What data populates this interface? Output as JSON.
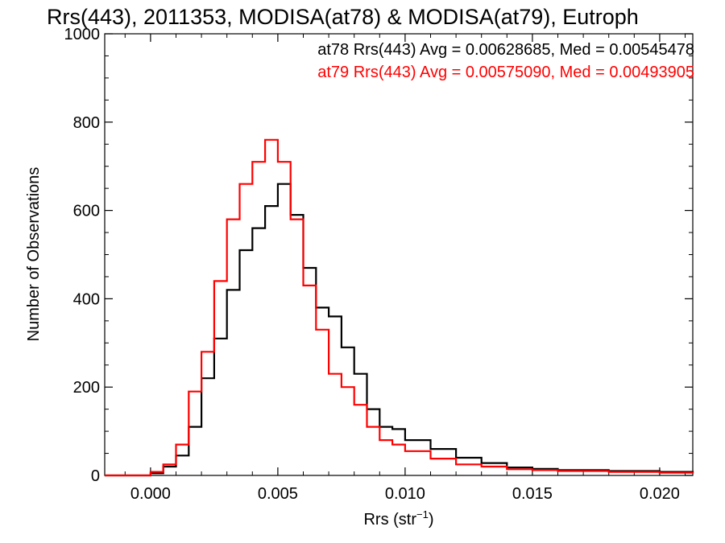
{
  "chart_data": {
    "type": "line",
    "title": "Rrs(443), 2011353, MODISA(at78) & MODISA(at79), Eutroph",
    "xlabel": "Rrs (str",
    "xlabel_sup": "−1",
    "xlabel_close": ")",
    "ylabel": "Number of Observations",
    "xlim": [
      -0.0018,
      0.0213
    ],
    "ylim": [
      0,
      1000
    ],
    "x_ticks": [
      0.0,
      0.005,
      0.01,
      0.015,
      0.02
    ],
    "x_tick_labels": [
      "0.000",
      "0.005",
      "0.010",
      "0.015",
      "0.020"
    ],
    "y_ticks": [
      0,
      200,
      400,
      600,
      800,
      1000
    ],
    "y_tick_labels": [
      "0",
      "200",
      "400",
      "600",
      "800",
      "1000"
    ],
    "annotations": [
      {
        "text": "at78 Rrs(443) Avg = 0.00628685, Med = 0.00545478",
        "color": "#000000"
      },
      {
        "text": "at79 Rrs(443) Avg = 0.00575090, Med = 0.00493905",
        "color": "#ff0000"
      }
    ],
    "series": [
      {
        "color": "#000000",
        "x": [
          -0.0018,
          -0.0005,
          0.0,
          0.0005,
          0.001,
          0.0015,
          0.002,
          0.0025,
          0.003,
          0.0035,
          0.004,
          0.0045,
          0.005,
          0.0055,
          0.006,
          0.0065,
          0.007,
          0.0075,
          0.008,
          0.0085,
          0.009,
          0.0095,
          0.01,
          0.011,
          0.012,
          0.013,
          0.014,
          0.015,
          0.016,
          0.018,
          0.02,
          0.0213
        ],
        "y": [
          0,
          0,
          5,
          20,
          45,
          110,
          220,
          310,
          420,
          510,
          560,
          610,
          660,
          590,
          470,
          380,
          360,
          290,
          230,
          150,
          110,
          105,
          80,
          60,
          40,
          28,
          18,
          15,
          12,
          10,
          8,
          5
        ]
      },
      {
        "color": "#ff0000",
        "x": [
          -0.0018,
          -0.0005,
          0.0,
          0.0005,
          0.001,
          0.0015,
          0.002,
          0.0025,
          0.003,
          0.0035,
          0.004,
          0.0045,
          0.005,
          0.0055,
          0.006,
          0.0065,
          0.007,
          0.0075,
          0.008,
          0.0085,
          0.009,
          0.0095,
          0.01,
          0.011,
          0.012,
          0.013,
          0.014,
          0.015,
          0.016,
          0.018,
          0.02,
          0.0213
        ],
        "y": [
          0,
          0,
          8,
          25,
          70,
          190,
          280,
          440,
          580,
          660,
          710,
          760,
          710,
          580,
          430,
          330,
          230,
          200,
          160,
          110,
          80,
          70,
          55,
          38,
          25,
          20,
          14,
          12,
          10,
          8,
          6,
          4
        ]
      }
    ]
  }
}
